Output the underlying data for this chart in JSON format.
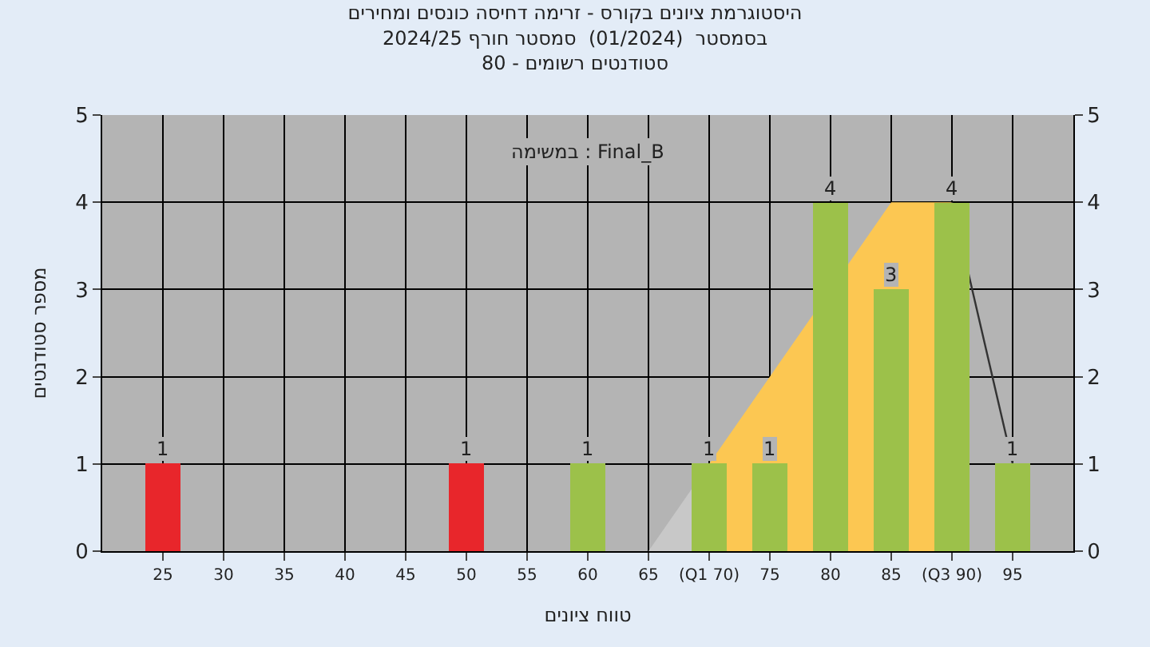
{
  "chart_data": {
    "type": "bar",
    "title": "היסטוגרמת ציונים בקורס - זרימה דחיסה כונסים ומחירים",
    "subtitle": "בסמסטר  (01/2024)  סמסטר חורף 2024/25\nסטודנטים רשומים - 80",
    "xlabel": "טווח ציונים",
    "ylabel": "מספר סטודנטים",
    "annotations": [
      "במשימה : Final_B"
    ],
    "series": [
      {
        "type": "area",
        "x": [
          65,
          70
        ],
        "values": [
          0,
          1
        ],
        "color": "#c8c8c8"
      },
      {
        "type": "area",
        "x": [
          70,
          85,
          90
        ],
        "values": [
          1,
          4,
          4
        ],
        "color": "#fcc752"
      },
      {
        "type": "line",
        "x": [
          90,
          95
        ],
        "values": [
          4,
          1
        ],
        "color": "#333333"
      },
      {
        "x": [
          25,
          50,
          60,
          70,
          75,
          80,
          85,
          90,
          95
        ],
        "values": [
          1,
          1,
          1,
          1,
          1,
          4,
          3,
          4,
          1
        ],
        "value_labels": [
          "1",
          "1",
          "1",
          "1",
          "1",
          "4",
          "3",
          "4",
          "1"
        ],
        "colors": [
          "#e8262b",
          "#e8262b",
          "#9cc14a",
          "#9cc14a",
          "#9cc14a",
          "#9cc14a",
          "#9cc14a",
          "#9cc14a",
          "#9cc14a"
        ]
      }
    ],
    "xlim": [
      20,
      100
    ],
    "xticks": [
      25,
      30,
      35,
      40,
      45,
      50,
      55,
      60,
      65,
      {
        "value": 70,
        "label": "(Q1 70)"
      },
      75,
      80,
      85,
      {
        "value": 90,
        "label": "(Q3 90)"
      },
      95
    ],
    "ylim": [
      0,
      5
    ],
    "yticks": [
      0,
      1,
      2,
      3,
      4,
      5
    ],
    "y2lim": [
      0,
      5
    ],
    "y2ticks": [
      0,
      1,
      2,
      3,
      4,
      5
    ],
    "grid": true
  }
}
